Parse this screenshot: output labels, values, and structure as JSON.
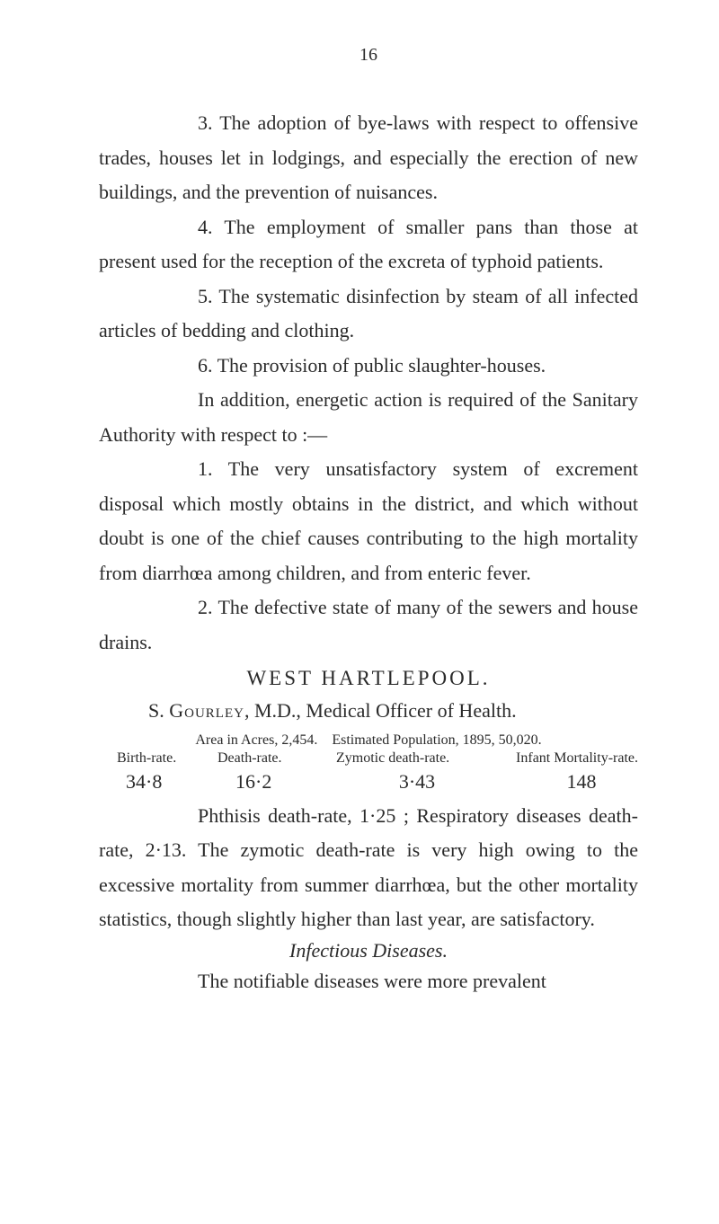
{
  "page_number": "16",
  "para1": "3. The adoption of bye-laws with respect to offensive trades, houses let in lodgings, and especially the erection of new buildings, and the prevention of nuisances.",
  "para2": "4. The employment of smaller pans than those at present used for the reception of the excreta of typhoid patients.",
  "para3": "5. The systematic disinfection by steam of all infected articles of bedding and clothing.",
  "para4": "6. The provision of public slaughter-houses.",
  "para5": "In addition, energetic action is required of the Sanitary Authority with respect to :—",
  "para6": "1. The very unsatisfactory system of excrement disposal which mostly obtains in the district, and which without doubt is one of the chief causes contributing to the high mortality from diarrhœa among children, and from enteric fever.",
  "para7": "2. The defective state of many of the sewers and house drains.",
  "heading": "WEST HARTLEPOOL.",
  "subheading_prefix": "S. ",
  "subheading_name": "Gourley",
  "subheading_suffix": ", M.D., Medical Officer of Health.",
  "area_line": "Area in Acres, 2,454. Estimated Population, 1895, 50,020.",
  "stats_headers": {
    "h1": "Birth-rate.",
    "h2": "Death-rate.",
    "h3": "Zymotic death-rate.",
    "h4": "Infant Mortality-rate."
  },
  "stats_values": {
    "v1": "34·8",
    "v2": "16·2",
    "v3": "3·43",
    "v4": "148"
  },
  "para8": "Phthisis death-rate, 1·25 ; Respiratory diseases death-rate, 2·13. The zymotic death-rate is very high owing to the excessive mortality from summer diarrhœa, but the other mortality statistics, though slightly higher than last year, are satisfactory.",
  "infectious_heading": "Infectious Diseases.",
  "para9": "The notifiable diseases were more prevalent"
}
